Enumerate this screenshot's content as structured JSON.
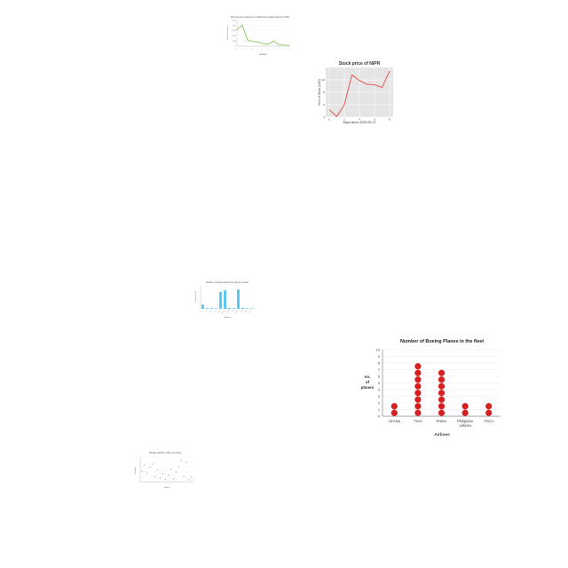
{
  "chart_data": [
    {
      "type": "line",
      "title": "Most common causes of nonfatal work-related injuries in 2019",
      "xlabel": "Causes",
      "ylabel": "Number of cases",
      "x": [
        "A",
        "B",
        "C",
        "D",
        "E",
        "F",
        "G",
        "H",
        "I",
        "J",
        "K"
      ],
      "values": [
        32000,
        41000,
        12000,
        9000,
        8000,
        5000,
        4000,
        10000,
        3000,
        2000,
        1500
      ],
      "ylim": [
        0,
        50000
      ],
      "yticks": [
        "50000",
        "40000",
        "30000",
        "20000",
        "10000",
        "0"
      ],
      "line_color": "#7bbf4a",
      "grid": true
    },
    {
      "type": "line",
      "title": "Stock price of NIPR",
      "xlabel": "Days since 2020-05-12",
      "ylabel": "Price of Stock (USD)",
      "x": [
        0,
        1,
        2,
        3,
        4,
        5,
        6,
        7,
        8
      ],
      "values": [
        5.2,
        4.1,
        6.0,
        10.8,
        9.9,
        9.3,
        9.2,
        8.8,
        11.4
      ],
      "ylim": [
        4,
        12
      ],
      "yticks": [
        "10",
        "8",
        "6",
        "4"
      ],
      "xticks": [
        "0",
        "2",
        "4",
        "6",
        "8"
      ],
      "line_color": "#e84a4a",
      "background": "#e5e5e5",
      "grid": true
    },
    {
      "type": "bar",
      "title": "Number of flowers sold in the past 12 months",
      "xlabel": "Flowers",
      "ylabel": "Number sold",
      "categories": [
        "Rose",
        "Lily",
        "Tulip",
        "Daisy",
        "Orchid",
        "Sunflower",
        "Peony",
        "Iris",
        "Carnation",
        "Lilac",
        "Aster",
        "Dahlia"
      ],
      "values": [
        55,
        10,
        8,
        7,
        220,
        240,
        12,
        9,
        250,
        14,
        8,
        6
      ],
      "ylim": [
        0,
        300
      ],
      "bar_color": "#4fc3f7",
      "grid": true
    },
    {
      "type": "scatter",
      "title": "Number of Boeing Planes in the fleet",
      "xlabel": "Airlines",
      "ylabel_lines": [
        "no.",
        "of",
        "planes"
      ],
      "categories": [
        "AirAsia",
        "THAI",
        "Porter",
        "Philippine Airlines",
        "TACA"
      ],
      "category_lines": [
        [
          "AirAsia"
        ],
        [
          "THAI"
        ],
        [
          "Porter"
        ],
        [
          "Philippine",
          "Airlines"
        ],
        [
          "TACA"
        ]
      ],
      "values": [
        2,
        8,
        7,
        2,
        2
      ],
      "ylim": [
        0,
        10
      ],
      "yticks": [
        "0",
        "1",
        "2",
        "3",
        "4",
        "5",
        "6",
        "7",
        "8",
        "9",
        "10"
      ],
      "marker_color": "#d42020",
      "grid": true
    },
    {
      "type": "scatter",
      "title": "Monthly rainfall in 2021 (in inches)",
      "xlabel": "Month",
      "ylabel": "Rainfall",
      "x": [
        1,
        2,
        3,
        4,
        5,
        6,
        7,
        8,
        9,
        10,
        11,
        12,
        13,
        14,
        15,
        16,
        17,
        18,
        19,
        20
      ],
      "values": [
        4.2,
        6.8,
        3.5,
        5.9,
        7.2,
        2.1,
        4.8,
        1.6,
        3.3,
        0.9,
        2.7,
        5.1,
        1.2,
        3.9,
        6.1,
        8.6,
        2.4,
        7.9,
        0.8,
        1.9
      ],
      "ylim": [
        0,
        10
      ],
      "marker_color": "#7e9fd6",
      "grid": true
    }
  ]
}
